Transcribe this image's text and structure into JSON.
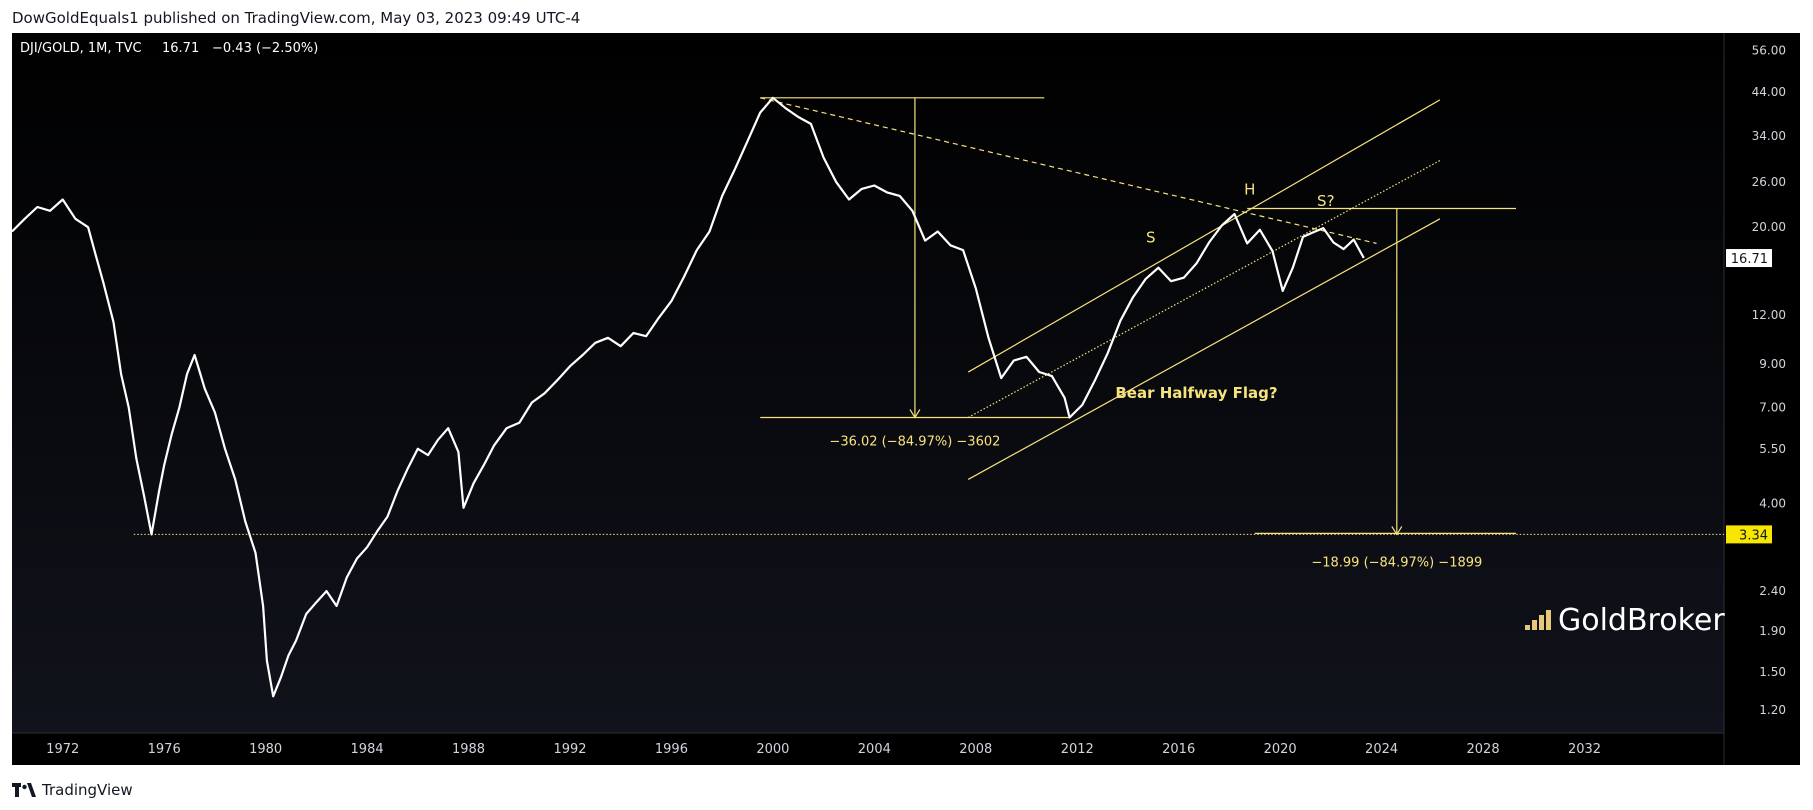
{
  "header": {
    "publish_line": "DowGoldEquals1 published on TradingView.com, May 03, 2023 09:49 UTC-4"
  },
  "footer": {
    "brand": "TradingView"
  },
  "watermark": {
    "text": "GoldBroker"
  },
  "colors": {
    "background": "#000000",
    "price_line": "#ffffff",
    "drawing": "#f7e37d",
    "label_bg": "#f7e600",
    "axis_text": "#d1d4dc"
  },
  "chart_data": {
    "type": "line",
    "symbol_line": {
      "symbol": "DJI/GOLD, 1M, TVC",
      "last": "16.71",
      "change": "−0.43 (−2.50%)"
    },
    "scale": "log",
    "ylim": [
      1.05,
      62
    ],
    "xlim": [
      1970.0,
      2037.5
    ],
    "x_ticks": [
      "1972",
      "1976",
      "1980",
      "1984",
      "1988",
      "1992",
      "1996",
      "2000",
      "2004",
      "2008",
      "2012",
      "2016",
      "2020",
      "2024",
      "2028",
      "2032"
    ],
    "y_ticks": [
      "56.00",
      "44.00",
      "34.00",
      "26.00",
      "20.00",
      "12.00",
      "9.00",
      "7.00",
      "5.50",
      "4.00",
      "2.40",
      "1.90",
      "1.50",
      "1.20"
    ],
    "price_labels": [
      {
        "value": 16.71,
        "text": "16.71"
      },
      {
        "value": 3.34,
        "text": "3.34"
      }
    ],
    "series": [
      {
        "x": [
          1970.0,
          1970.5,
          1971.0,
          1971.5,
          1972.0,
          1972.5,
          1973.0,
          1973.3,
          1973.6,
          1974.0,
          1974.3,
          1974.6,
          1974.9,
          1975.2,
          1975.5,
          1975.8,
          1976.0,
          1976.3,
          1976.6,
          1976.9,
          1977.2,
          1977.6,
          1978.0,
          1978.4,
          1978.8,
          1979.2,
          1979.6,
          1979.9,
          1980.05,
          1980.3,
          1980.6,
          1980.9,
          1981.2,
          1981.6,
          1982.0,
          1982.4,
          1982.8,
          1983.2,
          1983.6,
          1984.0,
          1984.4,
          1984.8,
          1985.2,
          1985.6,
          1986.0,
          1986.4,
          1986.8,
          1987.2,
          1987.6,
          1987.8,
          1988.2,
          1988.6,
          1989.0,
          1989.5,
          1990.0,
          1990.5,
          1991.0,
          1991.5,
          1992.0,
          1992.5,
          1993.0,
          1993.5,
          1994.0,
          1994.5,
          1995.0,
          1995.5,
          1996.0,
          1996.5,
          1997.0,
          1997.5,
          1998.0,
          1998.5,
          1999.0,
          1999.5,
          2000.0,
          2000.5,
          2001.0,
          2001.5,
          2002.0,
          2002.5,
          2003.0,
          2003.5,
          2004.0,
          2004.5,
          2005.0,
          2005.5,
          2006.0,
          2006.5,
          2007.0,
          2007.5,
          2008.0,
          2008.5,
          2009.0,
          2009.5,
          2010.0,
          2010.5,
          2011.0,
          2011.5,
          2011.7,
          2012.2,
          2012.7,
          2013.2,
          2013.7,
          2014.2,
          2014.7,
          2015.2,
          2015.7,
          2016.2,
          2016.7,
          2017.2,
          2017.7,
          2018.2,
          2018.7,
          2019.2,
          2019.7,
          2020.1,
          2020.5,
          2020.9,
          2021.3,
          2021.7,
          2022.1,
          2022.5,
          2022.9,
          2023.3
        ],
        "y": [
          19.5,
          21.0,
          22.5,
          22.0,
          23.5,
          21.0,
          20.0,
          17.0,
          14.5,
          11.5,
          8.5,
          7.0,
          5.2,
          4.2,
          3.34,
          4.3,
          5.0,
          6.0,
          7.0,
          8.5,
          9.5,
          7.8,
          6.8,
          5.5,
          4.6,
          3.6,
          3.0,
          2.2,
          1.6,
          1.3,
          1.45,
          1.65,
          1.8,
          2.1,
          2.25,
          2.4,
          2.2,
          2.6,
          2.9,
          3.1,
          3.4,
          3.7,
          4.3,
          4.9,
          5.5,
          5.3,
          5.8,
          6.2,
          5.4,
          3.9,
          4.5,
          5.0,
          5.6,
          6.2,
          6.4,
          7.2,
          7.6,
          8.2,
          8.9,
          9.5,
          10.2,
          10.5,
          10.0,
          10.8,
          10.6,
          11.8,
          13.0,
          15.0,
          17.5,
          19.5,
          24.0,
          28.0,
          33.0,
          39.0,
          42.5,
          40.0,
          38.0,
          36.5,
          30.0,
          26.0,
          23.5,
          25.0,
          25.5,
          24.5,
          24.0,
          22.0,
          18.5,
          19.5,
          18.0,
          17.5,
          14.0,
          10.5,
          8.3,
          9.2,
          9.4,
          8.6,
          8.4,
          7.4,
          6.6,
          7.1,
          8.2,
          9.6,
          11.6,
          13.3,
          14.8,
          15.8,
          14.6,
          14.9,
          16.2,
          18.3,
          20.2,
          21.6,
          18.2,
          19.7,
          17.4,
          13.8,
          15.8,
          18.9,
          19.4,
          19.9,
          18.3,
          17.6,
          18.6,
          16.71
        ]
      }
    ],
    "annotations": [
      {
        "type": "label",
        "text": "H",
        "x": 2018.8,
        "y": 24.2
      },
      {
        "type": "label",
        "text": "S",
        "x": 2014.9,
        "y": 18.3
      },
      {
        "type": "label",
        "text": "S?",
        "x": 2021.8,
        "y": 22.6
      },
      {
        "type": "label",
        "text": "Bear Halfway Flag?",
        "x": 2016.7,
        "y": 7.4
      },
      {
        "type": "measure",
        "text": "−36.02 (−84.97%) −3602"
      },
      {
        "type": "measure",
        "text": "−18.99 (−84.97%) −1899"
      }
    ]
  }
}
